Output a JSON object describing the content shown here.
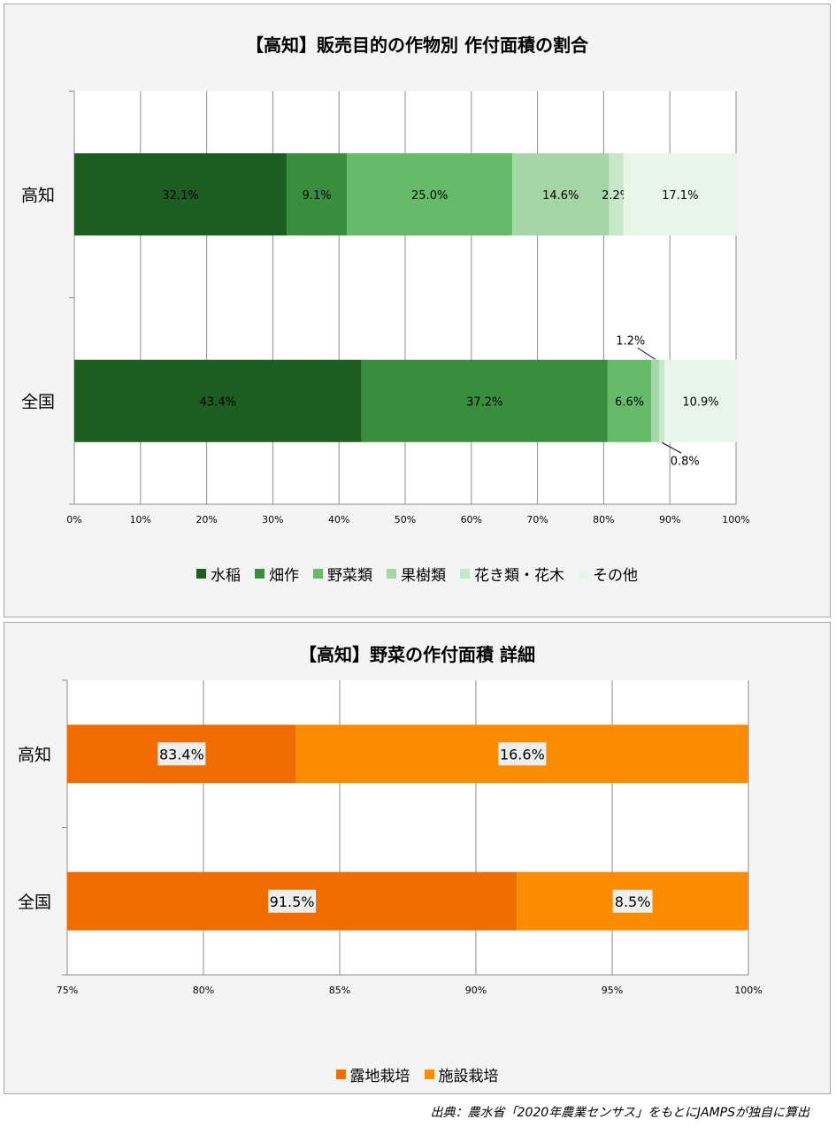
{
  "source_note": "出典：農水省「2020年農業センサス」をもとにJAMPSが独自に算出",
  "chart_data": [
    {
      "type": "bar",
      "orientation": "horizontal",
      "stacked": "100%",
      "title": "【高知】販売目的の作物別 作付面積の割合",
      "categories": [
        "高知",
        "全国"
      ],
      "series": [
        {
          "name": "水稲",
          "values": [
            32.1,
            43.4
          ],
          "color": "#1d5e20",
          "labels": [
            "32.1%",
            "43.4%"
          ]
        },
        {
          "name": "畑作",
          "values": [
            9.1,
            37.2
          ],
          "color": "#388e3c",
          "labels": [
            "9.1%",
            "37.2%"
          ]
        },
        {
          "name": "野菜類",
          "values": [
            25.0,
            6.6
          ],
          "color": "#66bb6a",
          "labels": [
            "25.0%",
            "6.6%"
          ]
        },
        {
          "name": "果樹類",
          "values": [
            14.6,
            1.2
          ],
          "color": "#a5d6a7",
          "labels": [
            "14.6%",
            "1.2%"
          ]
        },
        {
          "name": "花き類・花木",
          "values": [
            2.2,
            0.8
          ],
          "color": "#c8e6c9",
          "labels": [
            "2.2%",
            "0.8%"
          ]
        },
        {
          "name": "その他",
          "values": [
            17.1,
            10.9
          ],
          "color": "#e8f5e9",
          "labels": [
            "17.1%",
            "10.9%"
          ]
        }
      ],
      "xlim": [
        0,
        100
      ],
      "xticks": [
        "0%",
        "10%",
        "20%",
        "30%",
        "40%",
        "50%",
        "60%",
        "70%",
        "80%",
        "90%",
        "100%"
      ],
      "grid": true,
      "legend_position": "bottom"
    },
    {
      "type": "bar",
      "orientation": "horizontal",
      "stacked": "100%",
      "title": "【高知】野菜の作付面積 詳細",
      "categories": [
        "高知",
        "全国"
      ],
      "series": [
        {
          "name": "露地栽培",
          "values": [
            83.4,
            91.5
          ],
          "color": "#ef6c00",
          "labels": [
            "83.4%",
            "91.5%"
          ]
        },
        {
          "name": "施設栽培",
          "values": [
            16.6,
            8.5
          ],
          "color": "#fb8c00",
          "labels": [
            "16.6%",
            "8.5%"
          ]
        }
      ],
      "xlim": [
        75,
        100
      ],
      "xticks": [
        "75%",
        "80%",
        "85%",
        "90%",
        "95%",
        "100%"
      ],
      "grid": true,
      "legend_position": "bottom"
    }
  ]
}
